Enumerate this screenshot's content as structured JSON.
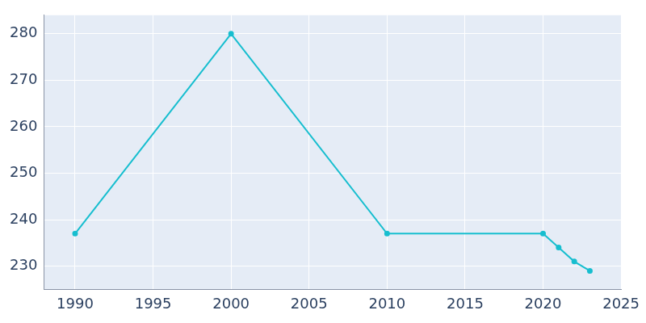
{
  "chart_data": {
    "type": "line",
    "x": [
      1990,
      2000,
      2010,
      2020,
      2021,
      2022,
      2023
    ],
    "values": [
      237,
      280,
      237,
      237,
      234,
      231,
      229
    ],
    "color": "#17becf",
    "marker": "circle",
    "xlim": [
      1988,
      2025
    ],
    "xticks": [
      1990,
      1995,
      2000,
      2005,
      2010,
      2015,
      2020,
      2025
    ],
    "ylim": [
      225,
      284
    ],
    "yticks": [
      230,
      240,
      250,
      260,
      270,
      280
    ],
    "grid": true
  }
}
